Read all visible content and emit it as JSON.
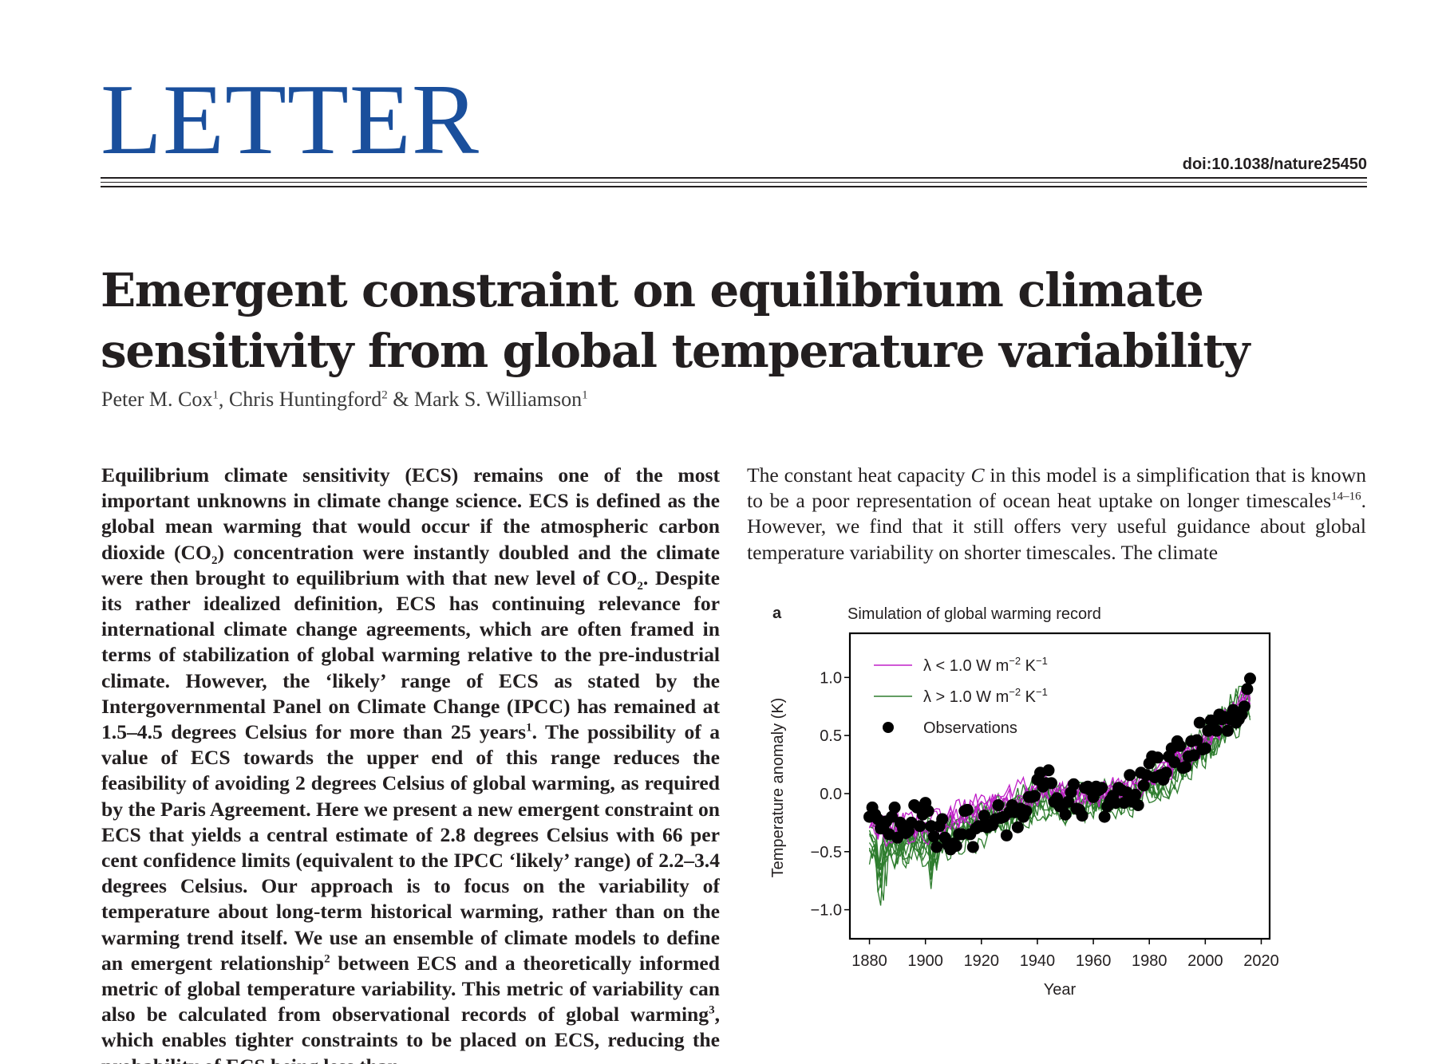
{
  "header": {
    "section": "LETTER",
    "doi": "doi:10.1038/nature25450"
  },
  "article": {
    "title_line1": "Emergent constraint on equilibrium climate",
    "title_line2": "sensitivity from global temperature variability",
    "authors": [
      {
        "name": "Peter M. Cox",
        "aff": "1",
        "sep": ", "
      },
      {
        "name": "Chris Huntingford",
        "aff": "2",
        "sep": " & "
      },
      {
        "name": "Mark S. Williamson",
        "aff": "1",
        "sep": ""
      }
    ]
  },
  "abstract_html": "Equilibrium climate sensitivity (ECS) remains one of the most important unknowns in climate change science. ECS is defined as the global mean warming that would occur if the atmospheric carbon dioxide (CO<sub>2</sub>) concentration were instantly doubled and the climate were then brought to equilibrium with that new level of CO<sub>2</sub>. Despite its rather idealized definition, ECS has continuing relevance for international climate change agreements, which are often framed in terms of stabilization of global warming relative to the pre-industrial climate. However, the ‘likely’ range of ECS as stated by the Intergovernmental Panel on Climate Change (IPCC) has remained at 1.5–4.5 degrees Celsius for more than 25 years<sup>1</sup>. The possibility of a value of ECS towards the upper end of this range reduces the feasibility of avoiding 2 degrees Celsius of global warming, as required by the Paris Agreement. Here we present a new emergent constraint on ECS that yields a central estimate of 2.8 degrees Celsius with 66 per cent confidence limits (equivalent to the IPCC ‘likely’ range) of 2.2–3.4 degrees Celsius. Our approach is to focus on the variability of temperature about long-term historical warming, rather than on the warming trend itself. We use an ensemble of climate models to define an emergent relationship<sup>2</sup> between ECS and a theoretically informed metric of global temperature variability. This metric of variability can also be calculated from observational records of global warming<sup>3</sup>, which enables tighter constraints to be placed on ECS, reducing the probability of ECS being less than",
  "body_html": "The constant heat capacity <i>C</i> in this model is a simplification that is known to be a poor representation of ocean heat uptake on longer timescales<sup>14–16</sup>. However, we find that it still offers very useful guidance about global temperature variability on shorter timescales. The climate",
  "figure": {
    "panel": "a",
    "title": "Simulation of global warming record"
  },
  "chart_data": {
    "type": "line",
    "title": "Simulation of global warming record",
    "xlabel": "Year",
    "ylabel": "Temperature anomaly (K)",
    "xlim": [
      1873,
      2023
    ],
    "ylim": [
      -1.25,
      1.38
    ],
    "xticks": [
      1880,
      1900,
      1920,
      1940,
      1960,
      1980,
      2000,
      2020
    ],
    "yticks": [
      -1.0,
      -0.5,
      0.0,
      0.5,
      1.0
    ],
    "ytick_labels": [
      "−1.0",
      "−0.5",
      "0.0",
      "0.5",
      "1.0"
    ],
    "legend": {
      "placement": "top-left",
      "entries": [
        {
          "label_pre": "λ < 1.0 W m",
          "exp1": "−2",
          "mid": " K",
          "exp2": "−1",
          "color": "#c020c8",
          "kind": "line"
        },
        {
          "label_pre": "λ > 1.0 W m",
          "exp1": "−2",
          "mid": " K",
          "exp2": "−1",
          "color": "#2e7d2e",
          "kind": "line"
        },
        {
          "label_pre": "Observations",
          "exp1": "",
          "mid": "",
          "exp2": "",
          "color": "#000000",
          "kind": "marker"
        }
      ]
    },
    "model_trend": {
      "x": [
        1880,
        1890,
        1900,
        1910,
        1920,
        1930,
        1940,
        1950,
        1960,
        1970,
        1980,
        1990,
        2000,
        2010,
        2016
      ],
      "y": [
        -0.33,
        -0.4,
        -0.35,
        -0.28,
        -0.2,
        -0.12,
        -0.02,
        -0.05,
        -0.04,
        -0.02,
        0.08,
        0.22,
        0.42,
        0.65,
        0.78
      ]
    },
    "series": [
      {
        "group": "λ < 1.0 W m−2 K−1",
        "color": "#c020c8",
        "offset": 0.08,
        "slope": 0.2,
        "seed": 11
      },
      {
        "group": "λ < 1.0 W m−2 K−1",
        "color": "#c020c8",
        "offset": 0.12,
        "slope": 0.15,
        "seed": 12
      },
      {
        "group": "λ < 1.0 W m−2 K−1",
        "color": "#c020c8",
        "offset": 0.02,
        "slope": 0.1,
        "seed": 13
      },
      {
        "group": "λ < 1.0 W m−2 K−1",
        "color": "#c020c8",
        "offset": 0.05,
        "slope": 0.25,
        "seed": 14
      },
      {
        "group": "λ < 1.0 W m−2 K−1",
        "color": "#c020c8",
        "offset": 0.15,
        "slope": 0.05,
        "seed": 15
      },
      {
        "group": "λ > 1.0 W m−2 K−1",
        "color": "#2e7d2e",
        "offset": -0.1,
        "slope": -0.05,
        "seed": 21
      },
      {
        "group": "λ > 1.0 W m−2 K−1",
        "color": "#2e7d2e",
        "offset": -0.05,
        "slope": -0.25,
        "seed": 22
      },
      {
        "group": "λ > 1.0 W m−2 K−1",
        "color": "#2e7d2e",
        "offset": -0.15,
        "slope": 0.1,
        "seed": 23
      },
      {
        "group": "λ > 1.0 W m−2 K−1",
        "color": "#2e7d2e",
        "offset": -0.02,
        "slope": -0.1,
        "seed": 24
      },
      {
        "group": "λ > 1.0 W m−2 K−1",
        "color": "#2e7d2e",
        "offset": -0.12,
        "slope": 0.0,
        "seed": 25
      },
      {
        "group": "λ > 1.0 W m−2 K−1",
        "color": "#2e7d2e",
        "offset": 0.0,
        "slope": 0.35,
        "seed": 26
      },
      {
        "group": "λ > 1.0 W m−2 K−1",
        "color": "#2e7d2e",
        "offset": -0.08,
        "slope": 0.05,
        "seed": 27
      },
      {
        "group": "λ > 1.0 W m−2 K−1",
        "color": "#2e7d2e",
        "offset": -0.18,
        "slope": -0.15,
        "seed": 28
      },
      {
        "group": "λ > 1.0 W m−2 K−1",
        "color": "#2e7d2e",
        "offset": 0.03,
        "slope": 0.15,
        "seed": 29
      },
      {
        "group": "λ > 1.0 W m−2 K−1",
        "color": "#2e7d2e",
        "offset": -0.06,
        "slope": 0.25,
        "seed": 30
      }
    ],
    "observations": {
      "x": [
        1880,
        1881,
        1882,
        1883,
        1884,
        1885,
        1886,
        1887,
        1888,
        1889,
        1890,
        1891,
        1892,
        1893,
        1894,
        1895,
        1896,
        1897,
        1898,
        1899,
        1900,
        1901,
        1902,
        1903,
        1904,
        1905,
        1906,
        1907,
        1908,
        1909,
        1910,
        1911,
        1912,
        1913,
        1914,
        1915,
        1916,
        1917,
        1918,
        1919,
        1920,
        1921,
        1922,
        1923,
        1924,
        1925,
        1926,
        1927,
        1928,
        1929,
        1930,
        1931,
        1932,
        1933,
        1934,
        1935,
        1936,
        1937,
        1938,
        1939,
        1940,
        1941,
        1942,
        1943,
        1944,
        1945,
        1946,
        1947,
        1948,
        1949,
        1950,
        1951,
        1952,
        1953,
        1954,
        1955,
        1956,
        1957,
        1958,
        1959,
        1960,
        1961,
        1962,
        1963,
        1964,
        1965,
        1966,
        1967,
        1968,
        1969,
        1970,
        1971,
        1972,
        1973,
        1974,
        1975,
        1976,
        1977,
        1978,
        1979,
        1980,
        1981,
        1982,
        1983,
        1984,
        1985,
        1986,
        1987,
        1988,
        1989,
        1990,
        1991,
        1992,
        1993,
        1994,
        1995,
        1996,
        1997,
        1998,
        1999,
        2000,
        2001,
        2002,
        2003,
        2004,
        2005,
        2006,
        2007,
        2008,
        2009,
        2010,
        2011,
        2012,
        2013,
        2014,
        2015,
        2016
      ],
      "y": [
        -0.2,
        -0.12,
        -0.18,
        -0.22,
        -0.3,
        -0.3,
        -0.24,
        -0.35,
        -0.2,
        -0.12,
        -0.38,
        -0.25,
        -0.3,
        -0.34,
        -0.32,
        -0.25,
        -0.1,
        -0.12,
        -0.28,
        -0.18,
        -0.08,
        -0.15,
        -0.28,
        -0.37,
        -0.46,
        -0.28,
        -0.22,
        -0.38,
        -0.44,
        -0.48,
        -0.43,
        -0.45,
        -0.35,
        -0.35,
        -0.15,
        -0.14,
        -0.35,
        -0.46,
        -0.3,
        -0.28,
        -0.28,
        -0.19,
        -0.29,
        -0.27,
        -0.27,
        -0.22,
        -0.1,
        -0.21,
        -0.2,
        -0.36,
        -0.16,
        -0.1,
        -0.16,
        -0.29,
        -0.13,
        -0.2,
        -0.15,
        -0.03,
        -0.03,
        -0.02,
        0.12,
        0.18,
        0.06,
        0.09,
        0.2,
        0.09,
        -0.07,
        -0.04,
        -0.11,
        -0.11,
        -0.18,
        -0.07,
        0.01,
        0.08,
        -0.13,
        -0.14,
        -0.19,
        0.05,
        0.06,
        0.03,
        -0.03,
        0.06,
        0.03,
        0.05,
        -0.2,
        -0.11,
        -0.06,
        -0.02,
        -0.08,
        0.05,
        0.03,
        -0.08,
        0.01,
        0.16,
        -0.07,
        -0.01,
        -0.1,
        0.18,
        0.07,
        0.16,
        0.26,
        0.32,
        0.14,
        0.31,
        0.16,
        0.12,
        0.18,
        0.32,
        0.39,
        0.27,
        0.45,
        0.41,
        0.22,
        0.23,
        0.32,
        0.45,
        0.33,
        0.46,
        0.61,
        0.38,
        0.39,
        0.54,
        0.63,
        0.62,
        0.54,
        0.68,
        0.64,
        0.66,
        0.54,
        0.64,
        0.72,
        0.61,
        0.64,
        0.68,
        0.75,
        0.9,
        0.99
      ]
    }
  }
}
